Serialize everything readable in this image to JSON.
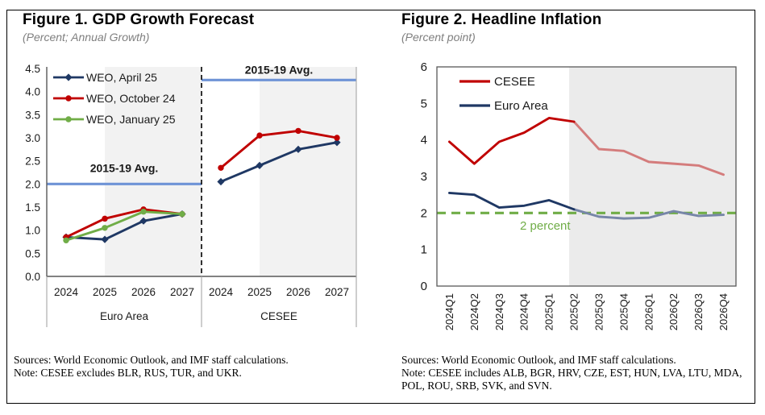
{
  "page": {
    "background": "#FFFFFF",
    "border_color": "#000000"
  },
  "figure1": {
    "title": "Figure 1. GDP Growth Forecast",
    "subtitle": "(Percent; Annual Growth)",
    "sources": "Sources: World Economic Outlook, and IMF staff calculations.",
    "note": "Note: CESEE excludes BLR, RUS, TUR, and UKR."
  },
  "figure2": {
    "title": "Figure 2. Headline Inflation",
    "subtitle": "(Percent point)",
    "sources": "Sources: World Economic Outlook, and IMF staff calculations.",
    "note": "Note: CESEE includes ALB, BGR, HRV, CZE, EST, HUN, LVA, LTU, MDA, POL, ROU, SRB, SVK, and SVN."
  },
  "chart_data": [
    {
      "type": "line",
      "title": "Figure 1. GDP Growth Forecast",
      "subtitle": "(Percent; Annual Growth)",
      "ylim": [
        0,
        4.5
      ],
      "yticks": [
        "0.0",
        "0.5",
        "1.0",
        "1.5",
        "2.0",
        "2.5",
        "3.0",
        "3.5",
        "4.0",
        "4.5"
      ],
      "grid": false,
      "legend_position": "top-left-inside",
      "forecast_shading_color": "#F2F2F2",
      "avg_line_color": "#6E93D6",
      "panels": [
        {
          "label": "Euro Area",
          "categories": [
            "2024",
            "2025",
            "2026",
            "2027"
          ],
          "forecast_start_index": 1,
          "avg_line": {
            "label": "2015-19 Avg.",
            "value": 2.0
          },
          "series": [
            {
              "name": "WEO, April 25",
              "color": "#1F3864",
              "marker": "diamond",
              "values": [
                0.85,
                0.8,
                1.2,
                1.35
              ]
            },
            {
              "name": "WEO, October 24",
              "color": "#C00000",
              "marker": "circle",
              "values": [
                0.85,
                1.25,
                1.45,
                1.35
              ]
            },
            {
              "name": "WEO, January 25",
              "color": "#70AD47",
              "marker": "circle",
              "values": [
                0.78,
                1.05,
                1.4,
                1.35
              ]
            }
          ]
        },
        {
          "label": "CESEE",
          "categories": [
            "2024",
            "2025",
            "2026",
            "2027"
          ],
          "forecast_start_index": 1,
          "avg_line": {
            "label": "2015-19 Avg.",
            "value": 4.25
          },
          "series": [
            {
              "name": "WEO, April 25",
              "color": "#1F3864",
              "marker": "diamond",
              "values": [
                2.05,
                2.4,
                2.75,
                2.9
              ]
            },
            {
              "name": "WEO, October 24",
              "color": "#C00000",
              "marker": "circle",
              "values": [
                2.35,
                3.05,
                3.15,
                3.0
              ]
            }
          ]
        }
      ]
    },
    {
      "type": "line",
      "title": "Figure 2. Headline Inflation",
      "subtitle": "(Percent point)",
      "ylim": [
        0,
        6
      ],
      "yticks": [
        "0",
        "1",
        "2",
        "3",
        "4",
        "5",
        "6"
      ],
      "grid": false,
      "legend_position": "top-left-inside",
      "forecast_shading_color": "#EBEBEB",
      "forecast_start_index": 5,
      "categories": [
        "2024Q1",
        "2024Q2",
        "2024Q3",
        "2024Q4",
        "2025Q1",
        "2025Q2",
        "2025Q3",
        "2025Q4",
        "2026Q1",
        "2026Q2",
        "2026Q3",
        "2026Q4"
      ],
      "series": [
        {
          "name": "CESEE",
          "color": "#C00000",
          "faded_color": "#D47C7C",
          "values": [
            3.95,
            3.35,
            3.95,
            4.2,
            4.6,
            4.5,
            3.75,
            3.7,
            3.4,
            3.35,
            3.3,
            3.05
          ]
        },
        {
          "name": "Euro Area",
          "color": "#1F3864",
          "faded_color": "#7786A8",
          "values": [
            2.55,
            2.5,
            2.15,
            2.2,
            2.35,
            2.1,
            1.9,
            1.85,
            1.87,
            2.05,
            1.92,
            1.95
          ]
        }
      ],
      "threshold": {
        "label": "2 percent",
        "value": 2,
        "color": "#70AD47",
        "style": "dashed"
      }
    }
  ]
}
